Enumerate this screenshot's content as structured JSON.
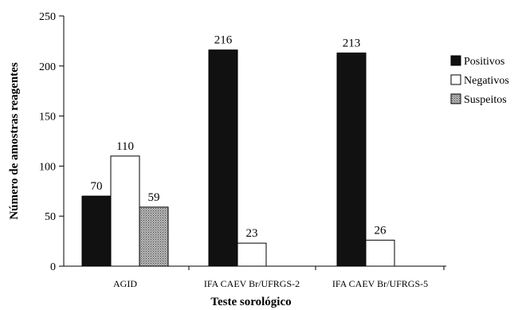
{
  "chart_data": {
    "type": "bar",
    "xlabel": "Teste sorológico",
    "ylabel": "Número de amostras reagentes",
    "ylim": [
      0,
      250
    ],
    "yticks": [
      0,
      50,
      100,
      150,
      200,
      250
    ],
    "categories": [
      "AGID",
      "IFA CAEV Br/UFRGS-2",
      "IFA CAEV Br/UFRGS-5"
    ],
    "series": [
      {
        "name": "Positivos",
        "values": [
          70,
          216,
          213
        ],
        "color": "#111111",
        "pattern": "solid"
      },
      {
        "name": "Negativos",
        "values": [
          110,
          23,
          26
        ],
        "color": "#ffffff",
        "pattern": "solid"
      },
      {
        "name": "Suspeitos",
        "values": [
          59,
          null,
          null
        ],
        "color": "#999999",
        "pattern": "dotted"
      }
    ],
    "data_labels": [
      [
        "70",
        "216",
        "213"
      ],
      [
        "110",
        "23",
        "26"
      ],
      [
        "59",
        "",
        ""
      ]
    ],
    "legend_position": "right",
    "grid": false
  }
}
